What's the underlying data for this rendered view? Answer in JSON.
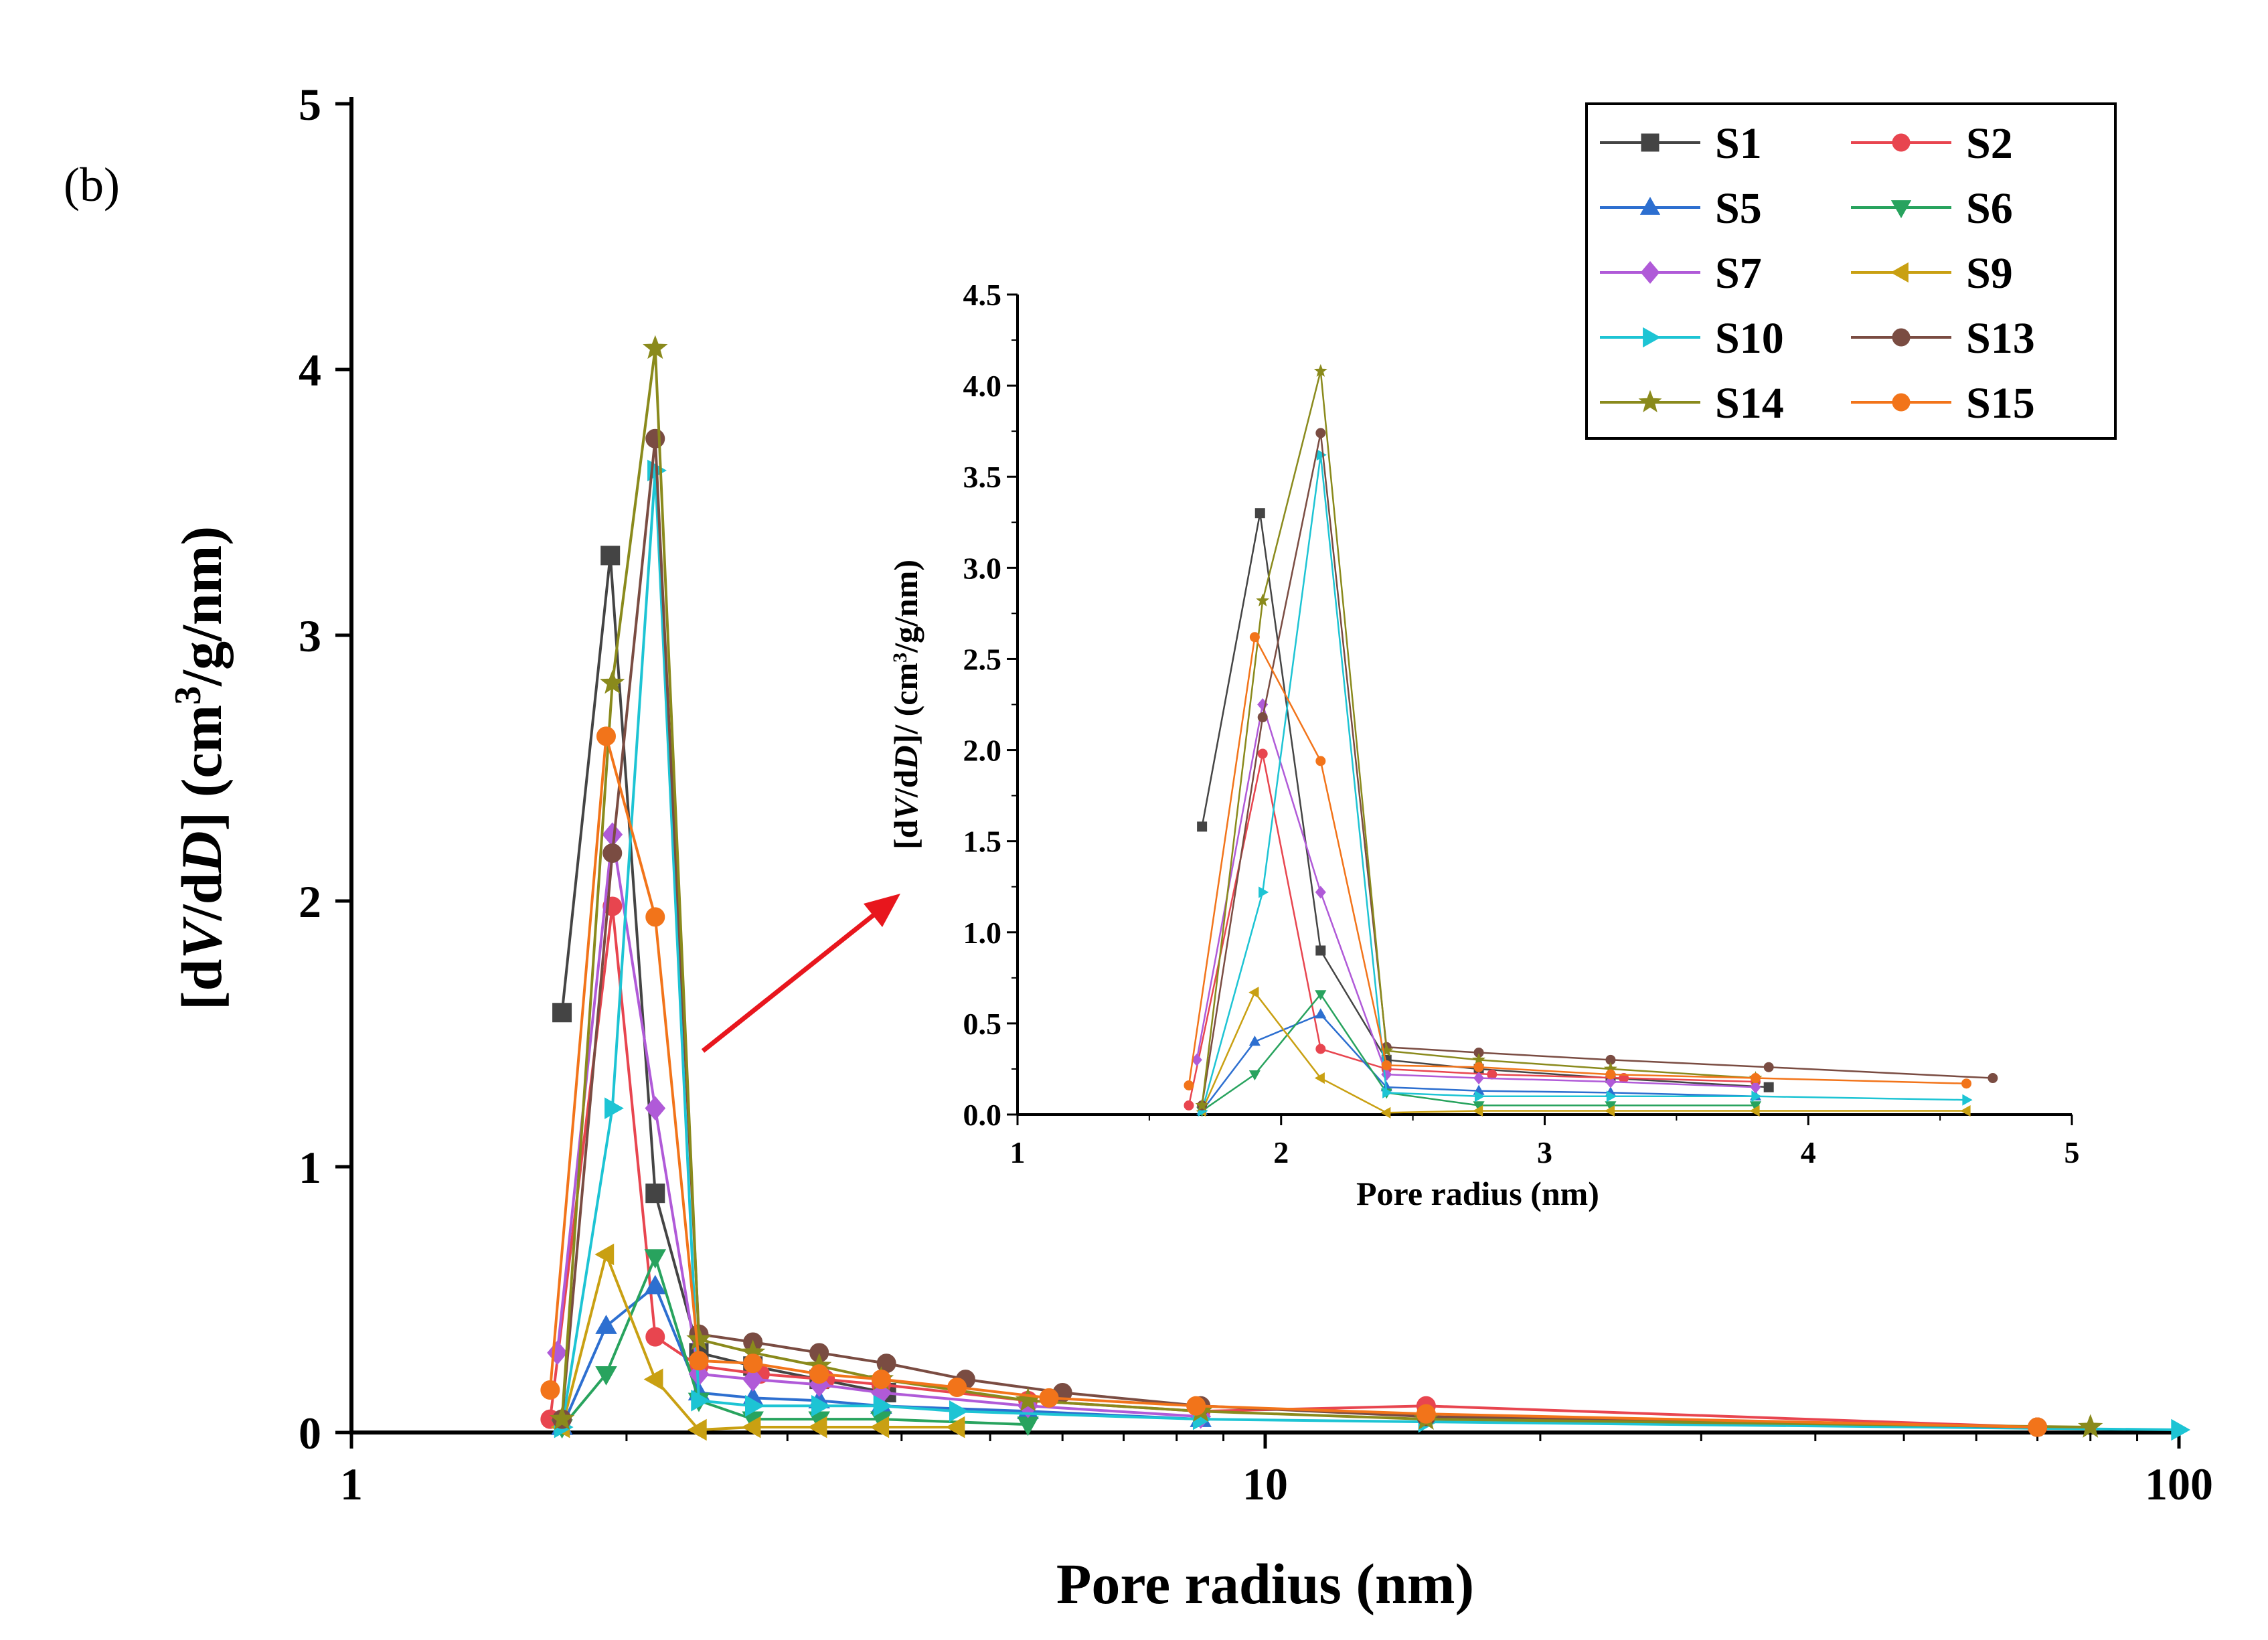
{
  "panel_label": "(b)",
  "chart_data": [
    {
      "type": "line",
      "panel": "main",
      "xlabel": "Pore radius (nm)",
      "ylabel_parts": [
        "[d",
        "V",
        "/d",
        "D",
        "] (cm",
        "3",
        "/g/nm)"
      ],
      "xscale": "log",
      "xlim": [
        1,
        100
      ],
      "ylim": [
        0,
        5
      ],
      "xticks": [
        1,
        10,
        100
      ],
      "xtick_labels": [
        "1",
        "10",
        "100"
      ],
      "yticks": [
        0,
        1,
        2,
        3,
        4,
        5
      ],
      "ytick_labels": [
        "0",
        "1",
        "2",
        "3",
        "4",
        "5"
      ],
      "grid": false,
      "legend_position": "top-right",
      "series": [
        {
          "name": "S1",
          "color": "#444444",
          "marker": "square",
          "x": [
            1.7,
            1.92,
            2.15,
            2.4,
            2.75,
            3.25,
            3.85
          ],
          "y": [
            1.58,
            3.3,
            0.9,
            0.3,
            0.25,
            0.2,
            0.15
          ]
        },
        {
          "name": "S2",
          "color": "#e8454f",
          "marker": "circle",
          "x": [
            1.65,
            1.93,
            2.15,
            2.4,
            2.8,
            3.3,
            3.8,
            5.5,
            8.5,
            15,
            70
          ],
          "y": [
            0.05,
            1.98,
            0.36,
            0.25,
            0.22,
            0.2,
            0.18,
            0.12,
            0.08,
            0.1,
            0.02
          ]
        },
        {
          "name": "S5",
          "color": "#2d6fd0",
          "marker": "triangle-up",
          "x": [
            1.7,
            1.9,
            2.15,
            2.4,
            2.75,
            3.25,
            3.8,
            5.5,
            8.5
          ],
          "y": [
            0.02,
            0.4,
            0.55,
            0.15,
            0.13,
            0.12,
            0.1,
            0.08,
            0.05
          ]
        },
        {
          "name": "S6",
          "color": "#28a35e",
          "marker": "triangle-down",
          "x": [
            1.7,
            1.9,
            2.15,
            2.4,
            2.75,
            3.25,
            3.8,
            5.5
          ],
          "y": [
            0.02,
            0.22,
            0.66,
            0.12,
            0.05,
            0.05,
            0.05,
            0.03
          ]
        },
        {
          "name": "S7",
          "color": "#b05ad8",
          "marker": "diamond",
          "x": [
            1.68,
            1.93,
            2.15,
            2.4,
            2.75,
            3.25,
            3.8,
            5.5,
            8.5
          ],
          "y": [
            0.3,
            2.25,
            1.22,
            0.22,
            0.2,
            0.18,
            0.15,
            0.1,
            0.06
          ]
        },
        {
          "name": "S9",
          "color": "#c9a012",
          "marker": "triangle-left",
          "x": [
            1.7,
            1.9,
            2.15,
            2.4,
            2.75,
            3.25,
            3.8,
            4.6
          ],
          "y": [
            0.02,
            0.67,
            0.2,
            0.01,
            0.02,
            0.02,
            0.02,
            0.02
          ]
        },
        {
          "name": "S10",
          "color": "#1dc4d4",
          "marker": "triangle-right",
          "x": [
            1.7,
            1.93,
            2.15,
            2.4,
            2.75,
            3.25,
            3.8,
            4.6,
            8.5,
            15,
            100
          ],
          "y": [
            0.02,
            1.22,
            3.62,
            0.12,
            0.1,
            0.1,
            0.1,
            0.08,
            0.05,
            0.04,
            0.01
          ]
        },
        {
          "name": "S13",
          "color": "#7a4c42",
          "marker": "circle",
          "x": [
            1.7,
            1.93,
            2.15,
            2.4,
            2.75,
            3.25,
            3.85,
            4.7,
            6,
            8.5,
            15,
            70
          ],
          "y": [
            0.05,
            2.18,
            3.74,
            0.37,
            0.34,
            0.3,
            0.26,
            0.2,
            0.15,
            0.1,
            0.06,
            0.02
          ]
        },
        {
          "name": "S14",
          "color": "#8a8a1c",
          "marker": "star",
          "x": [
            1.7,
            1.93,
            2.15,
            2.4,
            2.75,
            3.25,
            3.8,
            5.5,
            8.5,
            15,
            80
          ],
          "y": [
            0.05,
            2.82,
            4.08,
            0.35,
            0.3,
            0.25,
            0.2,
            0.12,
            0.08,
            0.05,
            0.02
          ]
        },
        {
          "name": "S15",
          "color": "#f2741a",
          "marker": "circle",
          "x": [
            1.65,
            1.9,
            2.15,
            2.4,
            2.75,
            3.25,
            3.8,
            4.6,
            5.8,
            8.4,
            15,
            70
          ],
          "y": [
            0.16,
            2.62,
            1.94,
            0.27,
            0.26,
            0.22,
            0.2,
            0.17,
            0.13,
            0.1,
            0.07,
            0.02
          ]
        }
      ]
    },
    {
      "type": "line",
      "panel": "inset",
      "xlabel": "Pore radius (nm)",
      "ylabel_parts": [
        "[d",
        "V",
        "/d",
        "D",
        "]/ (cm",
        "3",
        "/g/nm)"
      ],
      "xscale": "linear",
      "xlim": [
        1,
        5
      ],
      "ylim": [
        0,
        4.5
      ],
      "xticks": [
        1,
        2,
        3,
        4,
        5
      ],
      "xtick_labels": [
        "1",
        "2",
        "3",
        "4",
        "5"
      ],
      "yticks": [
        0,
        0.5,
        1,
        1.5,
        2,
        2.5,
        3,
        3.5,
        4,
        4.5
      ],
      "ytick_labels": [
        "0.0",
        "0.5",
        "1.0",
        "1.5",
        "2.0",
        "2.5",
        "3.0",
        "3.5",
        "4.0",
        "4.5"
      ],
      "grid": false
    }
  ]
}
